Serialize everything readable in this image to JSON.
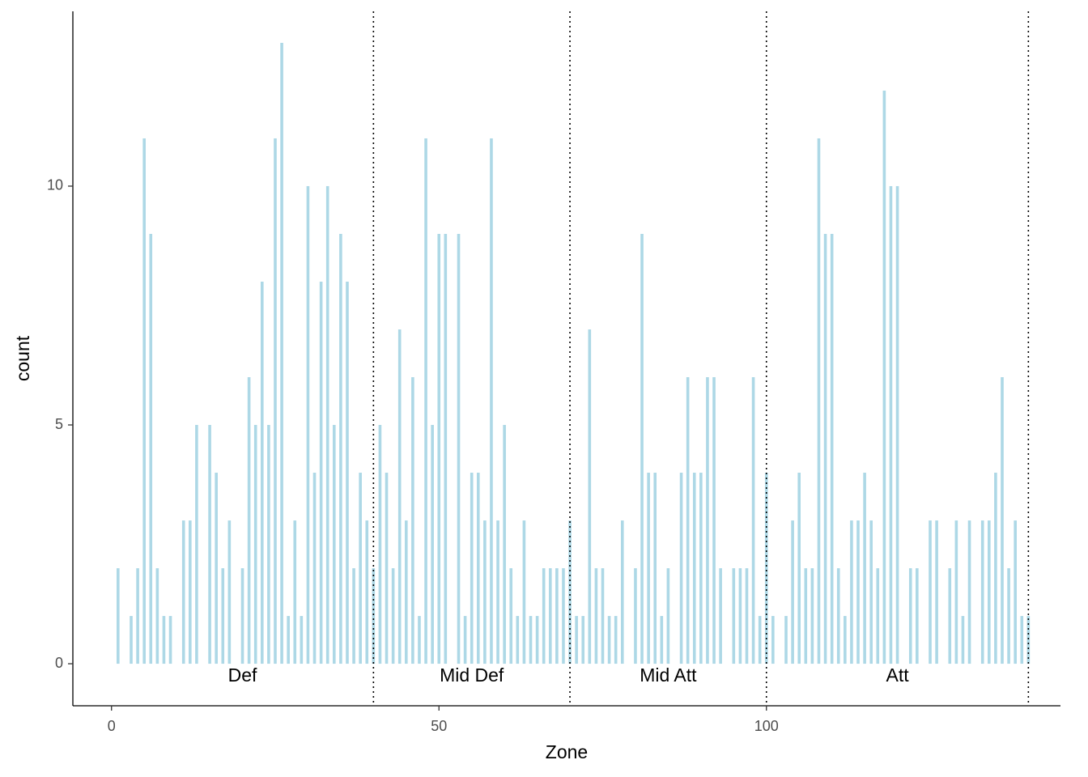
{
  "chart_data": {
    "type": "bar",
    "x_label": "Zone",
    "y_label": "count",
    "x": [
      1,
      3,
      4,
      5,
      6,
      7,
      8,
      9,
      11,
      12,
      13,
      15,
      16,
      17,
      18,
      20,
      21,
      22,
      23,
      24,
      25,
      26,
      27,
      28,
      29,
      30,
      31,
      32,
      33,
      34,
      35,
      36,
      37,
      38,
      39,
      40,
      41,
      42,
      43,
      44,
      45,
      46,
      47,
      48,
      49,
      50,
      51,
      53,
      54,
      55,
      56,
      57,
      58,
      59,
      60,
      61,
      62,
      63,
      64,
      65,
      66,
      67,
      68,
      69,
      70,
      71,
      72,
      73,
      74,
      75,
      76,
      77,
      78,
      80,
      81,
      82,
      83,
      84,
      85,
      87,
      88,
      89,
      90,
      91,
      92,
      93,
      95,
      96,
      97,
      98,
      99,
      100,
      101,
      103,
      104,
      105,
      106,
      107,
      108,
      109,
      110,
      111,
      112,
      113,
      114,
      115,
      116,
      117,
      118,
      119,
      120,
      122,
      123,
      125,
      126,
      128,
      129,
      130,
      131,
      133,
      134,
      135,
      136,
      137,
      138,
      139,
      140
    ],
    "values": [
      2,
      1,
      2,
      11,
      9,
      2,
      1,
      1,
      3,
      3,
      5,
      5,
      4,
      2,
      3,
      2,
      6,
      5,
      8,
      5,
      11,
      13,
      1,
      3,
      1,
      10,
      4,
      8,
      10,
      5,
      9,
      8,
      2,
      4,
      3,
      2,
      5,
      4,
      2,
      7,
      3,
      6,
      1,
      11,
      5,
      9,
      9,
      9,
      1,
      4,
      4,
      3,
      11,
      3,
      5,
      2,
      1,
      3,
      1,
      1,
      2,
      2,
      2,
      2,
      3,
      1,
      1,
      7,
      2,
      2,
      1,
      1,
      3,
      2,
      9,
      4,
      4,
      1,
      2,
      4,
      6,
      4,
      4,
      6,
      6,
      2,
      2,
      2,
      2,
      6,
      1,
      4,
      1,
      1,
      3,
      4,
      2,
      2,
      11,
      9,
      9,
      2,
      1,
      3,
      3,
      4,
      3,
      2,
      12,
      10,
      10,
      2,
      2,
      3,
      3,
      2,
      3,
      1,
      3,
      3,
      3,
      4,
      6,
      2,
      3,
      1,
      1
    ],
    "color": "#add8e6",
    "xlim": [
      -5.9,
      144.9
    ],
    "ylim": [
      -0.88,
      13.66
    ],
    "xticks": [
      0,
      50,
      100
    ],
    "yticks": [
      0,
      5,
      10
    ],
    "vlines": [
      40,
      70,
      100,
      140
    ],
    "annotations": [
      {
        "label": "Def",
        "x": 20,
        "y": -0.27
      },
      {
        "label": "Mid Def",
        "x": 55,
        "y": -0.27
      },
      {
        "label": "Mid Att",
        "x": 85,
        "y": -0.27
      },
      {
        "label": "Att",
        "x": 120,
        "y": -0.27
      }
    ]
  }
}
